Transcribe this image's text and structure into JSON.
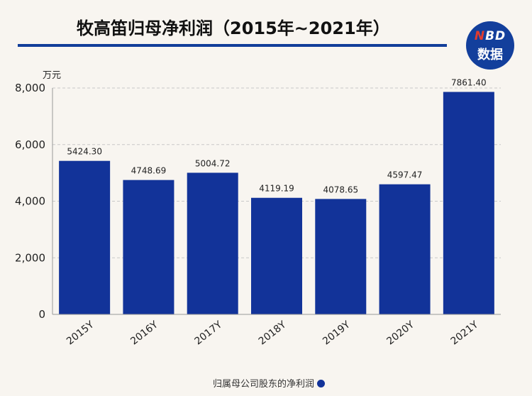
{
  "title": "牧高笛归母净利润（2015年~2021年）",
  "logo": {
    "n": "N",
    "bd": "BD",
    "line2": "数据"
  },
  "chart_data": {
    "type": "bar",
    "title": "牧高笛归母净利润（2015年~2021年）",
    "categories": [
      "2015Y",
      "2016Y",
      "2017Y",
      "2018Y",
      "2019Y",
      "2020Y",
      "2021Y"
    ],
    "series": [
      {
        "name": "归属母公司股东的净利润",
        "values": [
          5424.3,
          4748.69,
          5004.72,
          4119.19,
          4078.65,
          4597.47,
          7861.4
        ],
        "labels": [
          "5424.30",
          "4748.69",
          "5004.72",
          "4119.19",
          "4078.65",
          "4597.47",
          "7861.40"
        ]
      }
    ],
    "ylabel": "万元",
    "ylim": [
      0,
      8000
    ],
    "yticks": [
      "0",
      "2,000",
      "4,000",
      "6,000",
      "8,000"
    ],
    "ytick_values": [
      0,
      2000,
      4000,
      6000,
      8000
    ],
    "grid": true,
    "legend_position": "bottom",
    "color": "#123399"
  }
}
